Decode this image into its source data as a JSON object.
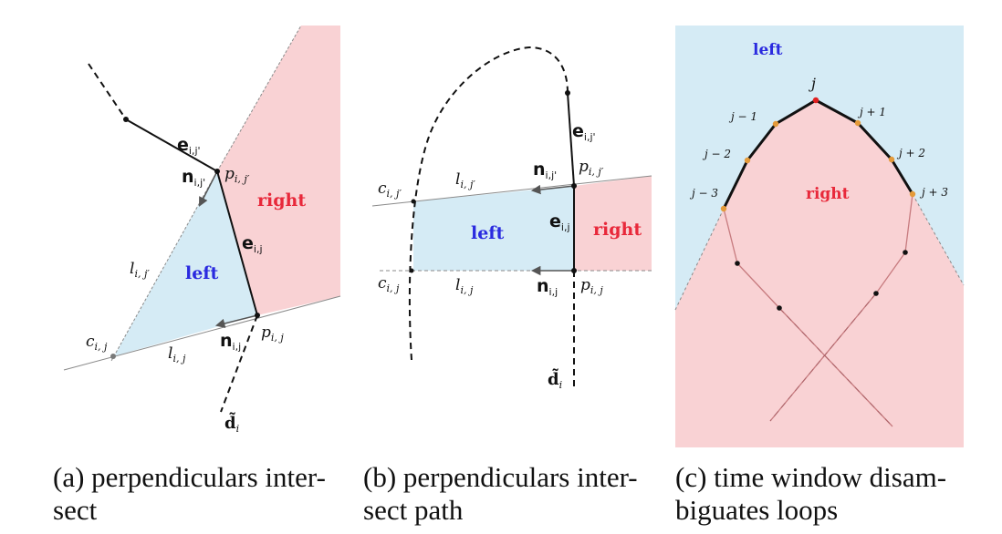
{
  "colors": {
    "left_fill": "#d5ebf5",
    "right_fill": "#f9d2d4",
    "left_text": "#2a2adf",
    "right_text": "#e8283a",
    "orange_dot": "#e49a3a",
    "red_dot": "#e02020",
    "loop_line": "#c77b7f",
    "stroke": "#111111",
    "grey": "#7a7a7a"
  },
  "panel_a": {
    "region_left": "left",
    "region_right": "right",
    "edge_e_ij_prime": "e",
    "edge_e_ij_prime_sub": "i,j'",
    "edge_e_ij": "e",
    "edge_e_ij_sub": "i,j",
    "normal_n_ij_prime": "n",
    "normal_n_ij_prime_sub": "i,j'",
    "normal_n_ij": "n",
    "normal_n_ij_sub": "i,j",
    "point_p_ij_prime": "p",
    "point_p_ij_prime_sub": "i, j′",
    "point_p_ij": "p",
    "point_p_ij_sub": "i, j",
    "line_l_ij_prime": "l",
    "line_l_ij_prime_sub": "i, j′",
    "line_l_ij": "l",
    "line_l_ij_sub": "i, j",
    "point_c_ij": "c",
    "point_c_ij_sub": "i, j",
    "direction_d": "d̃",
    "direction_d_sub": "i"
  },
  "panel_b": {
    "region_left": "left",
    "region_right": "right",
    "edge_e_ij_prime": "e",
    "edge_e_ij_prime_sub": "i,j'",
    "edge_e_ij": "e",
    "edge_e_ij_sub": "i,j",
    "normal_n_ij_prime": "n",
    "normal_n_ij_prime_sub": "i,j'",
    "normal_n_ij": "n",
    "normal_n_ij_sub": "i,j",
    "point_c_ij_prime": "c",
    "point_c_ij_prime_sub": "i, j′",
    "point_c_ij": "c",
    "point_c_ij_sub": "i, j",
    "line_l_ij_prime": "l",
    "line_l_ij_prime_sub": "i, j′",
    "line_l_ij": "l",
    "line_l_ij_sub": "i, j",
    "point_p_ij_prime": "p",
    "point_p_ij_prime_sub": "i, j′",
    "point_p_ij": "p",
    "point_p_ij_sub": "i, j",
    "direction_d": "d̃",
    "direction_d_sub": "i"
  },
  "panel_c": {
    "region_left": "left",
    "region_right": "right",
    "vertex_j": "j",
    "vertex_j_minus_1": "j − 1",
    "vertex_j_minus_2": "j − 2",
    "vertex_j_minus_3": "j − 3",
    "vertex_j_plus_1": "j + 1",
    "vertex_j_plus_2": "j + 2",
    "vertex_j_plus_3": "j + 3"
  },
  "captions": {
    "a_line1": "(a) perpendiculars inter-",
    "a_line2": "sect",
    "b_line1": "(b) perpendiculars inter-",
    "b_line2": "sect path",
    "c_line1": "(c) time window disam-",
    "c_line2": "biguates loops"
  }
}
